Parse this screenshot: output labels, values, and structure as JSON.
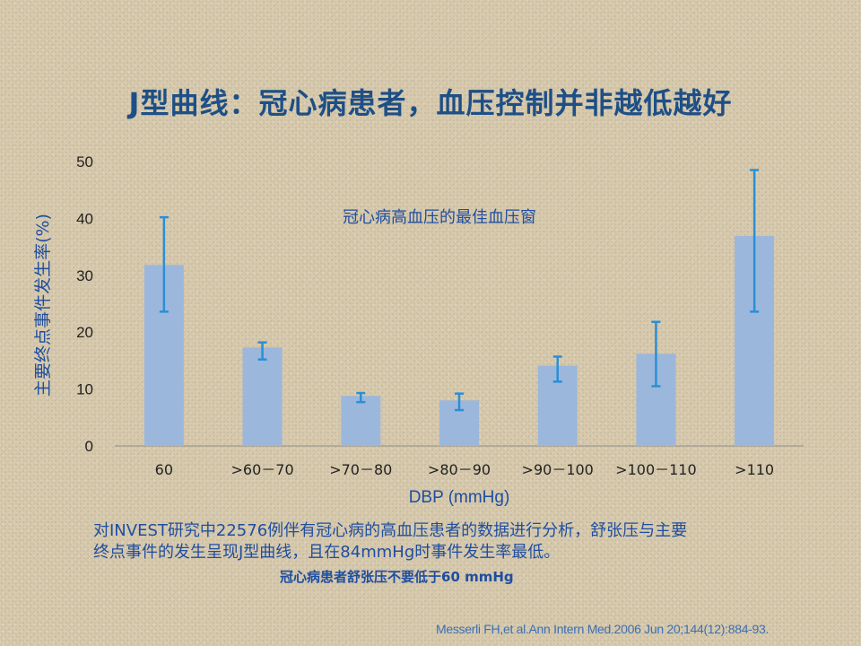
{
  "slide": {
    "title": "J型曲线：冠心病患者，血压控制并非越低越好",
    "body_line1": "对INVEST研究中22576例伴有冠心病的高血压患者的数据进行分析，舒张压与主要",
    "body_line2": "终点事件的发生呈现J型曲线，且在84mmHg时事件发生率最低。",
    "emphasis": "冠心病患者舒张压不要低于60 mmHg",
    "citation": "Messerli FH,et al.Ann Intern Med.2006 Jun 20;144(12):884-93."
  },
  "chart_data": {
    "type": "bar",
    "annotation": "冠心病高血压的最佳血压窗",
    "xlabel": "DBP (mmHg)",
    "ylabel": "主要终点事件发生率(%)",
    "ylim": [
      0,
      50
    ],
    "yticks": [
      0,
      10,
      20,
      30,
      40,
      50
    ],
    "categories": [
      "60",
      ">60－70",
      ">70－80",
      ">80－90",
      ">90－100",
      ">100－110",
      ">110"
    ],
    "values": [
      31.8,
      17.3,
      8.8,
      8.0,
      14.1,
      16.2,
      36.9
    ],
    "error_low": [
      23.6,
      15.2,
      7.7,
      6.3,
      11.3,
      10.5,
      23.6
    ],
    "error_high": [
      40.2,
      18.2,
      9.3,
      9.2,
      15.7,
      21.8,
      48.5
    ],
    "grid": false,
    "legend": "none",
    "colors": {
      "bar": "#9cb7dc",
      "error_bar": "#2a8fd6",
      "axis": "#1f4ea0",
      "tick": "#222222"
    }
  }
}
